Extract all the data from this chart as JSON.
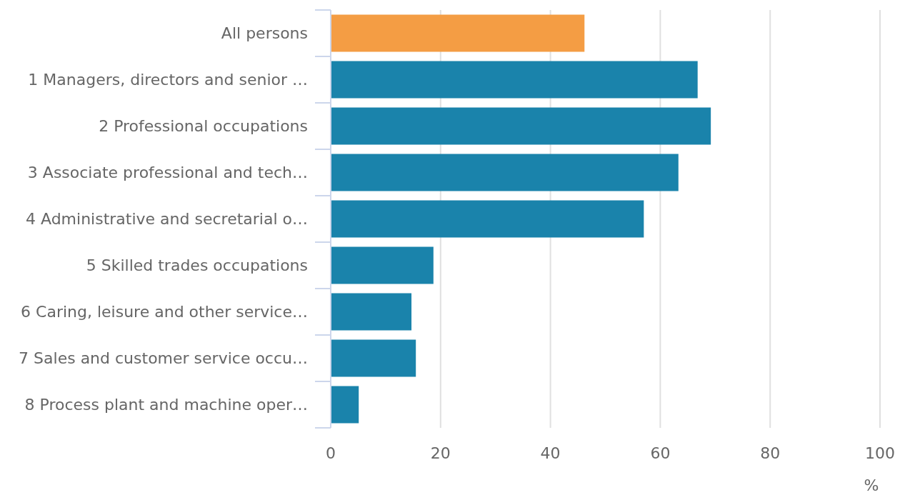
{
  "chart_data": {
    "type": "bar",
    "orientation": "horizontal",
    "xlabel": "%",
    "categories": [
      "All persons",
      "1 Managers, directors and senior …",
      "2 Professional occupations",
      "3 Associate professional and tech…",
      "4 Administrative and secretarial o…",
      "5 Skilled trades occupations",
      "6 Caring, leisure and other service…",
      "7 Sales and customer service occu…",
      "8 Process plant and machine oper…"
    ],
    "values": [
      46.2,
      66.8,
      69.2,
      63.3,
      57.0,
      18.7,
      14.7,
      15.5,
      5.1
    ],
    "colors": [
      "#f49d44",
      "#1a83ab",
      "#1a83ab",
      "#1a83ab",
      "#1a83ab",
      "#1a83ab",
      "#1a83ab",
      "#1a83ab",
      "#1a83ab"
    ],
    "xlim": [
      0,
      100
    ],
    "xticks": [
      0,
      20,
      40,
      60,
      80,
      100
    ],
    "grid": "x"
  }
}
